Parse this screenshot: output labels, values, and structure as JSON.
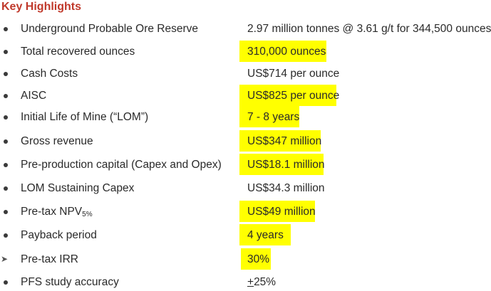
{
  "title": "Key Highlights",
  "highlight_color": "#ffff00",
  "title_color": "#c0392b",
  "items": [
    {
      "label": "Underground Probable Ore Reserve",
      "value": "2.97 million tonnes @ 3.61 g/t for 344,500 ounces",
      "highlighted": false
    },
    {
      "label": "Total recovered ounces",
      "value": "310,000 ounces",
      "highlighted": true
    },
    {
      "label": "Cash Costs",
      "value": "US$714 per ounce",
      "highlighted": false
    },
    {
      "label": "AISC",
      "value": "US$825 per ounce",
      "highlighted": true
    },
    {
      "label": "Initial Life of Mine (“LOM”)",
      "value": "7 - 8 years",
      "highlighted": true
    },
    {
      "label": "Gross revenue",
      "value": "US$347 million",
      "highlighted": true
    },
    {
      "label": "Pre-production capital (Capex and Opex)",
      "value": "US$18.1 million",
      "highlighted": true
    },
    {
      "label": "LOM Sustaining Capex",
      "value": "US$34.3 million",
      "highlighted": false
    },
    {
      "label_main": "Pre-tax NPV",
      "label_sub": "5%",
      "value": "US$49 million",
      "highlighted": true
    },
    {
      "label": "Payback period",
      "value": "4 years",
      "highlighted": true
    },
    {
      "label": "Pre-tax IRR",
      "value": "30%",
      "highlighted": true
    },
    {
      "label": "PFS study accuracy",
      "value_pm": "+",
      "value": "25%",
      "highlighted": false
    }
  ]
}
